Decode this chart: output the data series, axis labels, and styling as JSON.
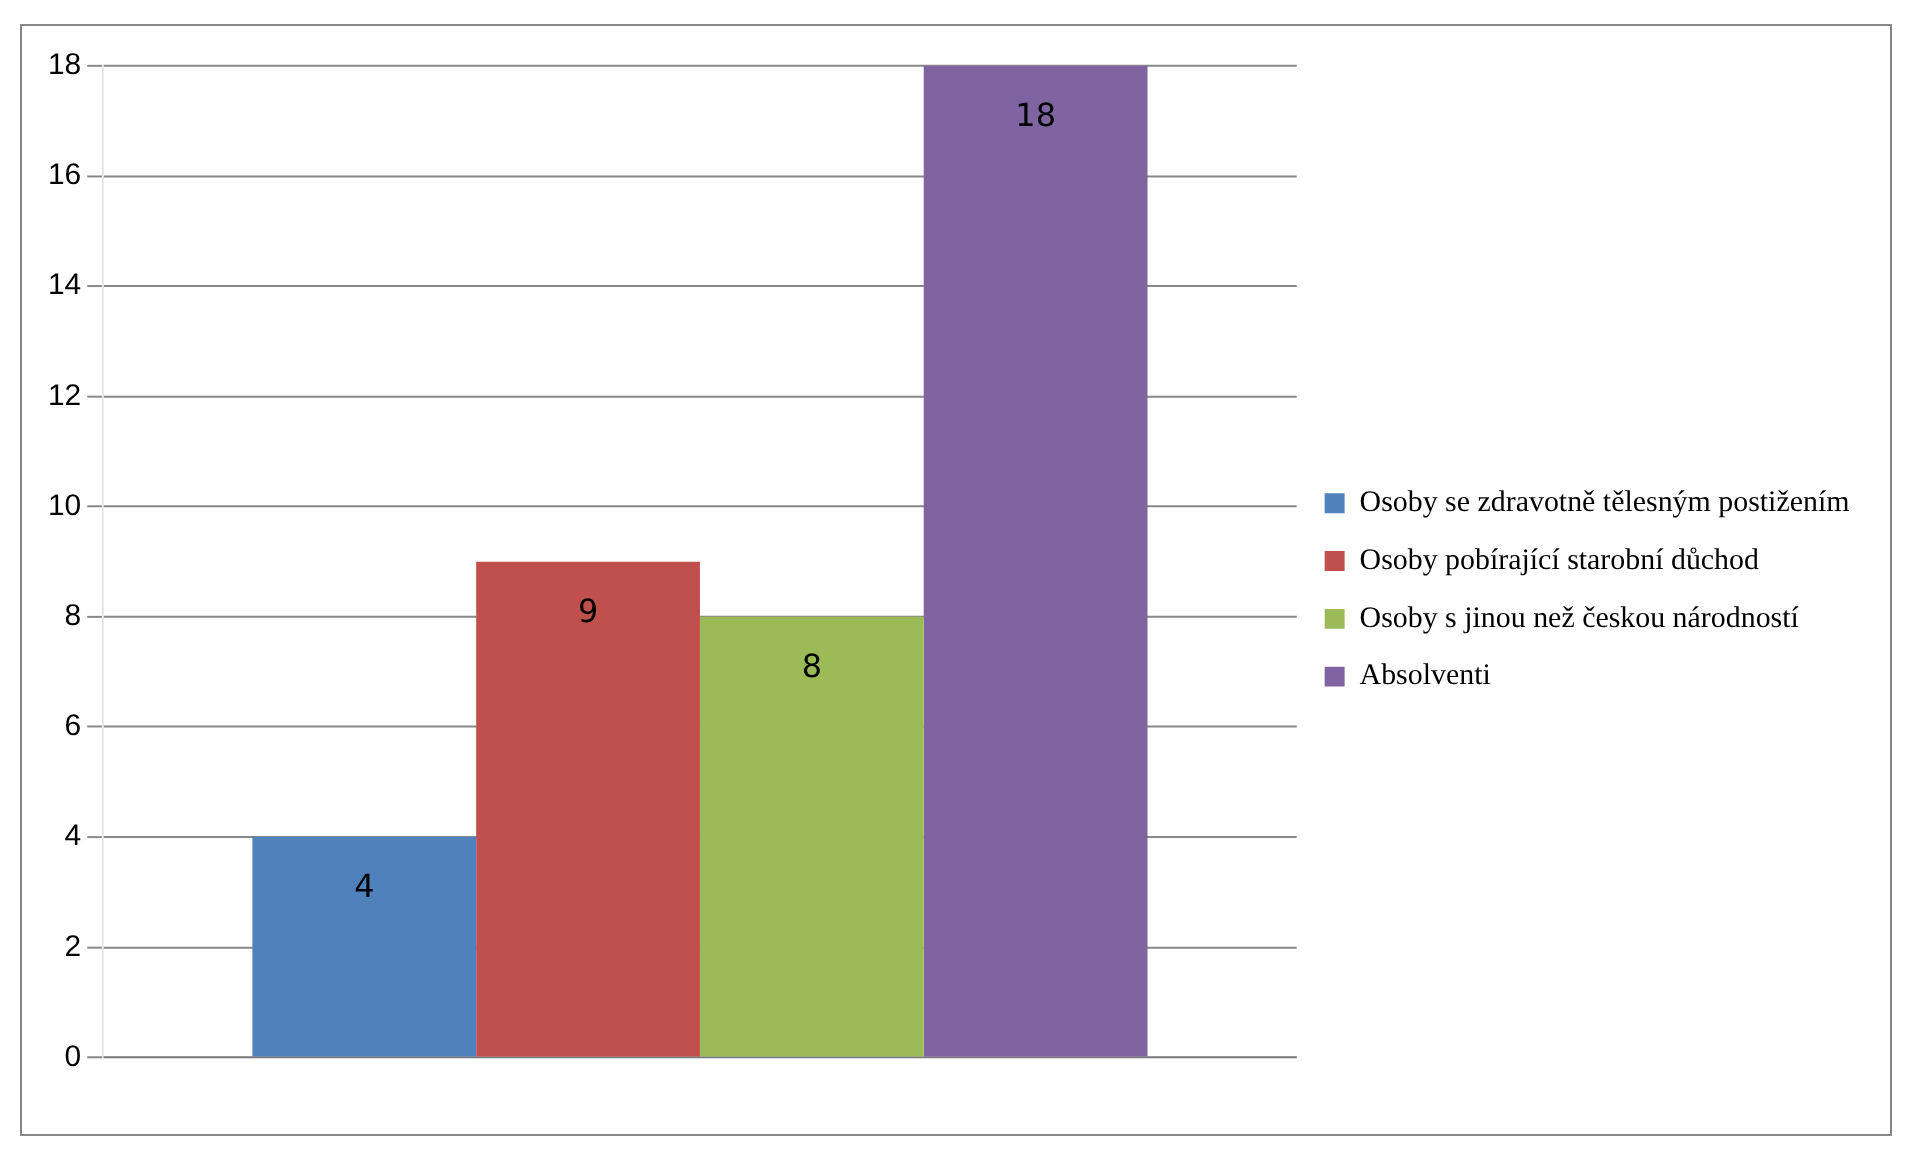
{
  "chart_data": {
    "type": "bar",
    "categories": [
      null
    ],
    "series": [
      {
        "name": "Osoby se zdravotně tělesným postižením",
        "color": "#4f81bd",
        "values": [
          4
        ]
      },
      {
        "name": "Osoby pobírající starobní důchod",
        "color": "#c0504d",
        "values": [
          9
        ]
      },
      {
        "name": "Osoby s jinou než českou národností",
        "color": "#9bbb59",
        "values": [
          8
        ]
      },
      {
        "name": "Absolventi",
        "color": "#8064a2",
        "values": [
          18
        ]
      }
    ],
    "ylim": [
      0,
      18
    ],
    "yticks": [
      0,
      2,
      4,
      6,
      8,
      10,
      12,
      14,
      16,
      18
    ],
    "grid": "y",
    "legend": "right",
    "data_labels": true
  }
}
